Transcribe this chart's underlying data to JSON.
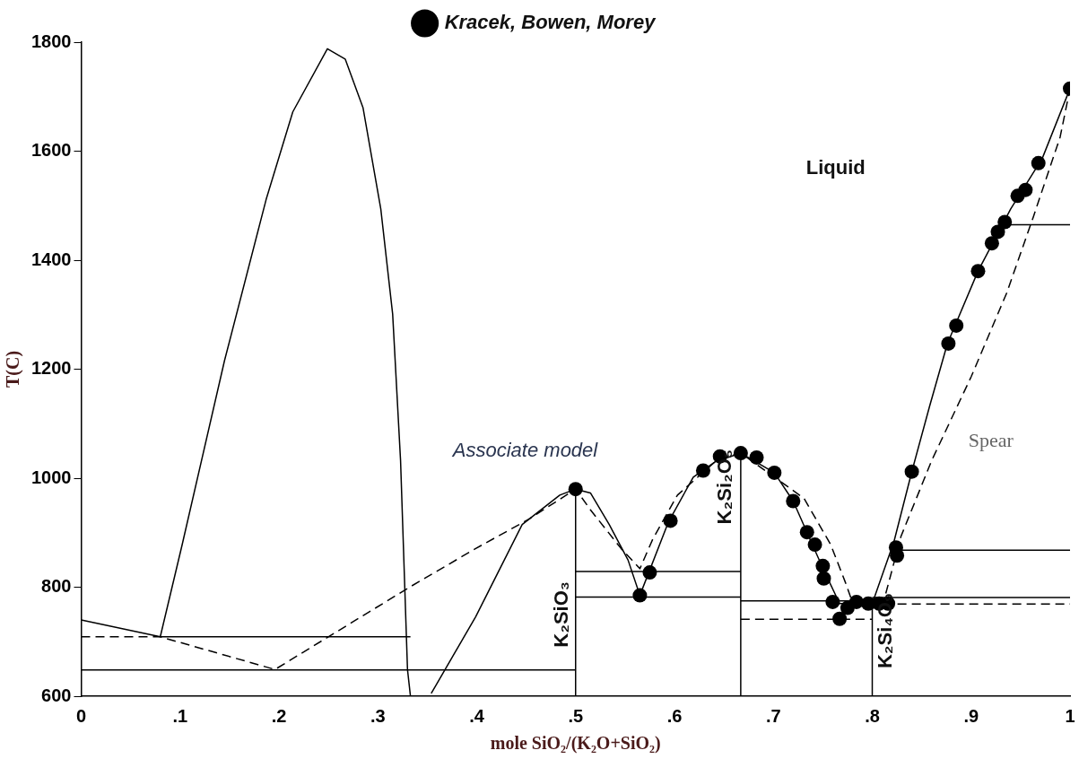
{
  "chart_data": {
    "type": "line",
    "xlabel": "mole SiO₂/(K₂O+SiO₂)",
    "ylabel": "T(C)",
    "xlim": [
      0,
      1
    ],
    "ylim": [
      600,
      1800
    ],
    "xticks": [
      0,
      {
        "value": 0.1,
        "label": ".1"
      },
      {
        "value": 0.2,
        "label": ".2"
      },
      {
        "value": 0.3,
        "label": ".3"
      },
      {
        "value": 0.4,
        "label": ".4"
      },
      {
        "value": 0.5,
        "label": ".5"
      },
      {
        "value": 0.6,
        "label": ".6"
      },
      {
        "value": 0.7,
        "label": ".7"
      },
      {
        "value": 0.8,
        "label": ".8"
      },
      {
        "value": 0.9,
        "label": ".9"
      },
      1
    ],
    "yticks": [
      600,
      800,
      1000,
      1200,
      1400,
      1600,
      1800
    ],
    "grid": false,
    "legend": "top",
    "annotations": [
      "Liquid",
      "Associate model",
      "Spear",
      "K₂SiO₃",
      "K₂Si₂O₅",
      "K₂Si₄O₉"
    ],
    "series": [
      {
        "name": "Kracek, Bowen, Morey",
        "type": "scatter",
        "color": "#000000",
        "marker": "circle",
        "x": [
          0.5,
          0.565,
          0.575,
          0.596,
          0.629,
          0.646,
          0.667,
          0.683,
          0.701,
          0.72,
          0.734,
          0.742,
          0.75,
          0.751,
          0.76,
          0.767,
          0.775,
          0.784,
          0.796,
          0.807,
          0.816,
          0.824,
          0.825,
          0.84,
          0.877,
          0.885,
          0.907,
          0.921,
          0.927,
          0.934,
          0.947,
          0.955,
          0.968,
          1.0
        ],
        "values": [
          980,
          785,
          827,
          922,
          1014,
          1040,
          1046,
          1038,
          1010,
          958,
          901,
          878,
          839,
          816,
          773,
          742,
          762,
          773,
          770,
          770,
          770,
          873,
          858,
          1012,
          1247,
          1280,
          1380,
          1431,
          1452,
          1470,
          1518,
          1529,
          1578,
          1715
        ]
      },
      {
        "color": "#000000",
        "line_style": "solid",
        "marker": "none",
        "x": [
          0,
          0.08,
          0.102,
          0.145,
          0.187,
          0.214,
          0.249,
          0.267,
          0.285,
          0.303,
          0.315,
          0.323,
          0.33,
          0.333
        ],
        "values": [
          740,
          709,
          877,
          1216,
          1511,
          1672,
          1788,
          1769,
          1680,
          1494,
          1301,
          1032,
          649,
          600
        ]
      },
      {
        "color": "#000000",
        "line_style": "dashed",
        "marker": "none",
        "x": [
          0,
          0.08,
          0.196,
          0.333,
          0.399,
          0.452,
          0.5,
          0.515,
          0.546,
          0.565,
          0.578,
          0.603,
          0.641,
          0.654,
          0.667,
          0.731,
          0.758,
          0.773,
          0.782
        ],
        "values": [
          709,
          709,
          649,
          801,
          871,
          924,
          980,
          942,
          871,
          834,
          888,
          969,
          1030,
          1040,
          1046,
          963,
          878,
          808,
          762
        ]
      },
      {
        "type": "line",
        "color": "#000000",
        "line_style": "dashed",
        "marker": "none",
        "x": [
          0.667,
          0.8
        ],
        "values": [
          741,
          741
        ]
      },
      {
        "type": "line",
        "color": "#000000",
        "line_style": "dashed",
        "marker": "none",
        "x": [
          0.807,
          0.811,
          0.829,
          0.86,
          0.9,
          0.936,
          0.963,
          0.99,
          1.0
        ],
        "values": [
          769,
          770,
          893,
          1032,
          1186,
          1340,
          1480,
          1626,
          1715
        ]
      },
      {
        "type": "line",
        "color": "#000000",
        "line_style": "dashed",
        "marker": "none",
        "x": [
          0.811,
          1.0
        ],
        "values": [
          769,
          769
        ]
      },
      {
        "type": "line",
        "color": "#000000",
        "line_style": "solid",
        "marker": "none",
        "x": [
          0.354,
          0.399,
          0.446,
          0.484,
          0.5,
          0.515,
          0.534,
          0.553,
          0.565,
          0.594,
          0.619,
          0.641,
          0.667,
          0.701,
          0.72,
          0.749,
          0.767,
          0.8,
          0.822,
          0.84,
          0.858,
          0.876,
          0.907,
          0.94,
          0.972,
          1.0
        ],
        "values": [
          605,
          746,
          915,
          969,
          980,
          973,
          915,
          850,
          785,
          920,
          1002,
          1030,
          1046,
          1010,
          958,
          839,
          770,
          770,
          884,
          1012,
          1132,
          1247,
          1380,
          1494,
          1587,
          1715
        ]
      },
      {
        "type": "line",
        "color": "#000000",
        "line_style": "solid",
        "marker": "none",
        "x": [
          0,
          0.5
        ],
        "values": [
          648,
          648
        ]
      },
      {
        "type": "line",
        "color": "#000000",
        "line_style": "solid",
        "marker": "none",
        "x": [
          0.08,
          0.333
        ],
        "values": [
          709,
          709
        ]
      },
      {
        "type": "line",
        "color": "#000000",
        "line_style": "solid",
        "marker": "none",
        "x": [
          0.5,
          0.5
        ],
        "values": [
          600,
          980
        ]
      },
      {
        "type": "line",
        "color": "#000000",
        "line_style": "solid",
        "marker": "none",
        "x": [
          0.5,
          0.667
        ],
        "values": [
          829,
          829
        ]
      },
      {
        "type": "line",
        "color": "#000000",
        "line_style": "solid",
        "marker": "none",
        "x": [
          0.5,
          0.667
        ],
        "values": [
          782,
          782
        ]
      },
      {
        "type": "line",
        "color": "#000000",
        "line_style": "solid",
        "marker": "none",
        "x": [
          0.667,
          0.667
        ],
        "values": [
          600,
          1046
        ]
      },
      {
        "type": "line",
        "color": "#000000",
        "line_style": "solid",
        "marker": "none",
        "x": [
          0.667,
          0.8
        ],
        "values": [
          775,
          775
        ]
      },
      {
        "type": "line",
        "color": "#000000",
        "line_style": "solid",
        "marker": "none",
        "x": [
          0.8,
          0.8
        ],
        "values": [
          600,
          775
        ]
      },
      {
        "type": "line",
        "color": "#000000",
        "line_style": "solid",
        "marker": "none",
        "x": [
          0.8,
          1.0
        ],
        "values": [
          781,
          781
        ]
      },
      {
        "type": "line",
        "color": "#000000",
        "line_style": "solid",
        "marker": "none",
        "x": [
          0.825,
          1.0
        ],
        "values": [
          868,
          868
        ]
      },
      {
        "type": "line",
        "color": "#000000",
        "line_style": "solid",
        "marker": "none",
        "x": [
          0.93,
          1.0
        ],
        "values": [
          1465,
          1465
        ]
      }
    ]
  }
}
